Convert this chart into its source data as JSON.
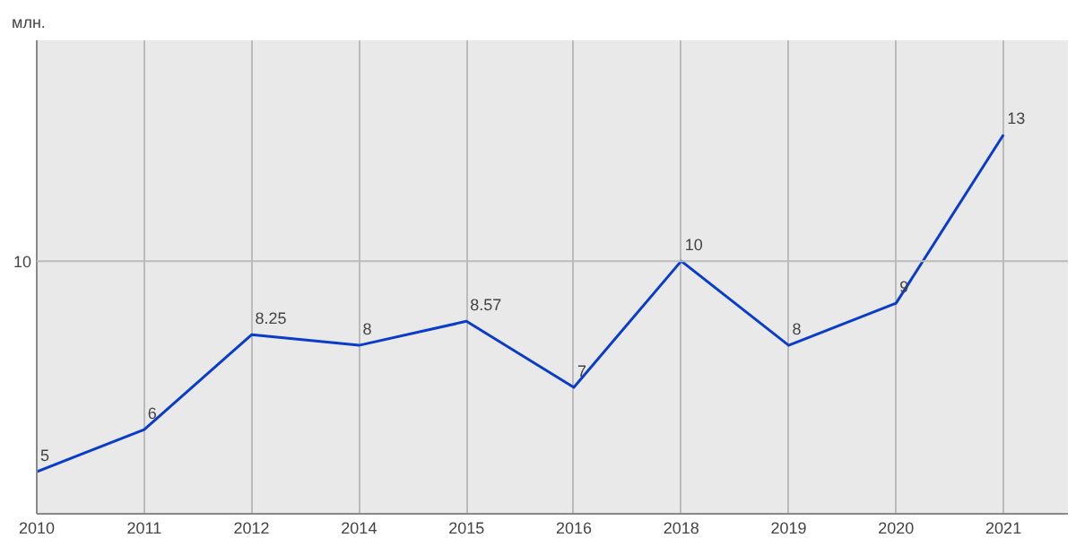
{
  "chart_data": {
    "type": "line",
    "annotations": [
      "млн."
    ],
    "categories": [
      "2010",
      "2011",
      "2012",
      "2014",
      "2015",
      "2016",
      "2018",
      "2019",
      "2020",
      "2021"
    ],
    "series": [
      {
        "color": "#0a3ccc",
        "values": [
          5,
          6,
          8.25,
          8,
          8.57,
          7,
          10,
          8,
          9,
          13
        ]
      }
    ],
    "ref_lines": [
      {
        "axis": "y",
        "value": 10,
        "label": "10",
        "color": "#bbbbbb"
      }
    ],
    "grid": "x",
    "data_labels": true,
    "line_style": "solid"
  }
}
